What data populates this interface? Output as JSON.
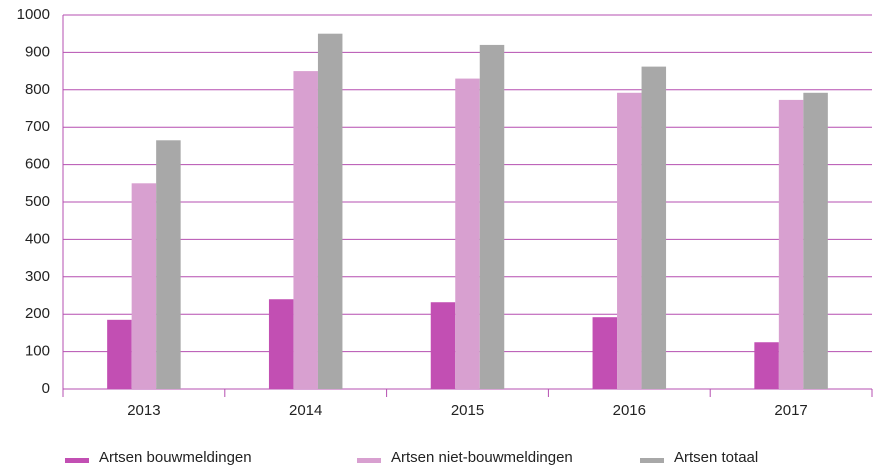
{
  "chart_data": {
    "type": "bar",
    "categories": [
      "2013",
      "2014",
      "2015",
      "2016",
      "2017"
    ],
    "series": [
      {
        "name": "Artsen bouwmeldingen",
        "color": "#c24fb3",
        "values": [
          185,
          240,
          232,
          192,
          125
        ]
      },
      {
        "name": "Artsen niet-bouwmeldingen",
        "color": "#d8a0d0",
        "values": [
          550,
          850,
          830,
          792,
          773
        ]
      },
      {
        "name": "Artsen totaal",
        "color": "#a8a8a8",
        "values": [
          665,
          950,
          920,
          862,
          792
        ]
      }
    ],
    "ylim": [
      0,
      1000
    ],
    "yticks": [
      0,
      100,
      200,
      300,
      400,
      500,
      600,
      700,
      800,
      900,
      1000
    ],
    "grid": true,
    "legend": "bottom"
  }
}
